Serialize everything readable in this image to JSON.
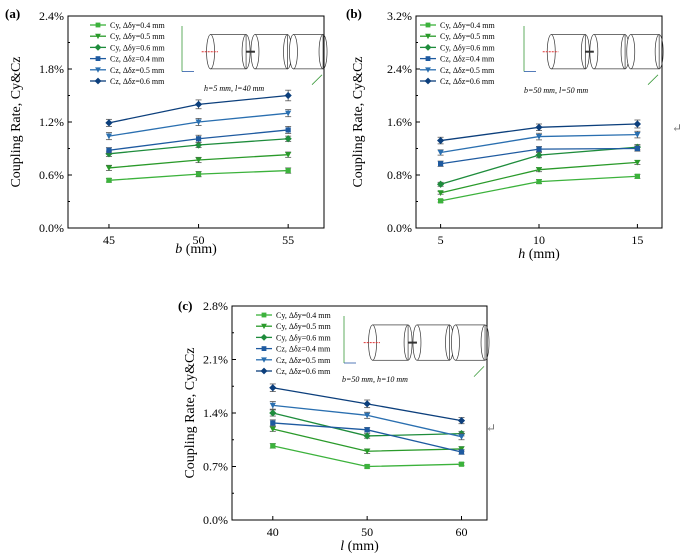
{
  "colors": {
    "light_green": "#3cb23c",
    "dark_green": "#1e8c3c",
    "mid_green": "#2a9a2a",
    "blue1": "#1e5aa0",
    "blue2": "#2a6fb0",
    "blue3": "#0c3f7c",
    "axis": "#000000",
    "error_bar": "#555555"
  },
  "return_mark": "↵",
  "chart_data": [
    {
      "panel": "(a)",
      "type": "line",
      "x": [
        45,
        50,
        55
      ],
      "xlabel": "b (mm)",
      "xlabel_var": "b",
      "xlabel_unit": " (mm)",
      "ylabel": "Coupling Rate, Cy&Cz",
      "yticks": [
        "0.0%",
        "0.6%",
        "1.2%",
        "1.8%",
        "2.4%"
      ],
      "ylim": [
        0,
        2.4
      ],
      "note": "h=5 mm, l=40 mm",
      "series": [
        {
          "name": "Cy, Δδy=0.4 mm",
          "values": [
            0.54,
            0.61,
            0.65
          ],
          "err": [
            0.02,
            0.03,
            0.03
          ]
        },
        {
          "name": "Cy, Δδy=0.5 mm",
          "values": [
            0.68,
            0.77,
            0.83
          ],
          "err": [
            0.03,
            0.03,
            0.03
          ]
        },
        {
          "name": "Cy, Δδy=0.6 mm",
          "values": [
            0.84,
            0.94,
            1.01
          ],
          "err": [
            0.03,
            0.03,
            0.03
          ]
        },
        {
          "name": "Cz, Δδz=0.4 mm",
          "values": [
            0.88,
            1.01,
            1.11
          ],
          "err": [
            0.03,
            0.04,
            0.04
          ]
        },
        {
          "name": "Cz, Δδz=0.5 mm",
          "values": [
            1.04,
            1.2,
            1.3
          ],
          "err": [
            0.04,
            0.04,
            0.04
          ]
        },
        {
          "name": "Cz, Δδz=0.6 mm",
          "values": [
            1.19,
            1.4,
            1.5
          ],
          "err": [
            0.04,
            0.05,
            0.06
          ]
        }
      ]
    },
    {
      "panel": "(b)",
      "type": "line",
      "x": [
        5,
        10,
        15
      ],
      "xlabel": "h (mm)",
      "xlabel_var": "h",
      "xlabel_unit": " (mm)",
      "ylabel": "Coupling Rate, Cy&Cz",
      "yticks": [
        "0.0%",
        "0.8%",
        "1.6%",
        "2.4%",
        "3.2%"
      ],
      "ylim": [
        0,
        3.2
      ],
      "note": "b=50 mm, l=50 mm",
      "series": [
        {
          "name": "Cy, Δδy=0.4 mm",
          "values": [
            0.41,
            0.7,
            0.78
          ],
          "err": [
            0.02,
            0.03,
            0.03
          ]
        },
        {
          "name": "Cy, Δδy=0.5 mm",
          "values": [
            0.53,
            0.88,
            0.99
          ],
          "err": [
            0.02,
            0.03,
            0.03
          ]
        },
        {
          "name": "Cy, Δδy=0.6 mm",
          "values": [
            0.66,
            1.1,
            1.22
          ],
          "err": [
            0.03,
            0.04,
            0.04
          ]
        },
        {
          "name": "Cz, Δδz=0.4 mm",
          "values": [
            0.97,
            1.19,
            1.2
          ],
          "err": [
            0.04,
            0.04,
            0.04
          ]
        },
        {
          "name": "Cz, Δδz=0.5 mm",
          "values": [
            1.14,
            1.38,
            1.41
          ],
          "err": [
            0.04,
            0.05,
            0.05
          ]
        },
        {
          "name": "Cz, Δδz=0.6 mm",
          "values": [
            1.32,
            1.52,
            1.57
          ],
          "err": [
            0.05,
            0.05,
            0.06
          ]
        }
      ]
    },
    {
      "panel": "(c)",
      "type": "line",
      "x": [
        40,
        50,
        60
      ],
      "xlabel": "l (mm)",
      "xlabel_var": "l",
      "xlabel_unit": " (mm)",
      "ylabel": "Coupling Rate, Cy&Cz",
      "yticks": [
        "0.0%",
        "0.7%",
        "1.4%",
        "2.1%",
        "2.8%"
      ],
      "ylim": [
        0,
        2.8
      ],
      "note": "b=50 mm, h=10 mm",
      "series": [
        {
          "name": "Cy, Δδy=0.4 mm",
          "values": [
            0.97,
            0.7,
            0.73
          ],
          "err": [
            0.03,
            0.02,
            0.02
          ]
        },
        {
          "name": "Cy, Δδy=0.5 mm",
          "values": [
            1.19,
            0.9,
            0.93
          ],
          "err": [
            0.03,
            0.03,
            0.03
          ]
        },
        {
          "name": "Cy, Δδy=0.6 mm",
          "values": [
            1.4,
            1.1,
            1.13
          ],
          "err": [
            0.04,
            0.03,
            0.03
          ]
        },
        {
          "name": "Cz, Δδz=0.4 mm",
          "values": [
            1.27,
            1.18,
            0.89
          ],
          "err": [
            0.04,
            0.03,
            0.03
          ]
        },
        {
          "name": "Cz, Δδz=0.5 mm",
          "values": [
            1.5,
            1.37,
            1.09
          ],
          "err": [
            0.05,
            0.04,
            0.04
          ]
        },
        {
          "name": "Cz, Δδz=0.6 mm",
          "values": [
            1.73,
            1.52,
            1.3
          ],
          "err": [
            0.05,
            0.05,
            0.04
          ]
        }
      ]
    }
  ]
}
